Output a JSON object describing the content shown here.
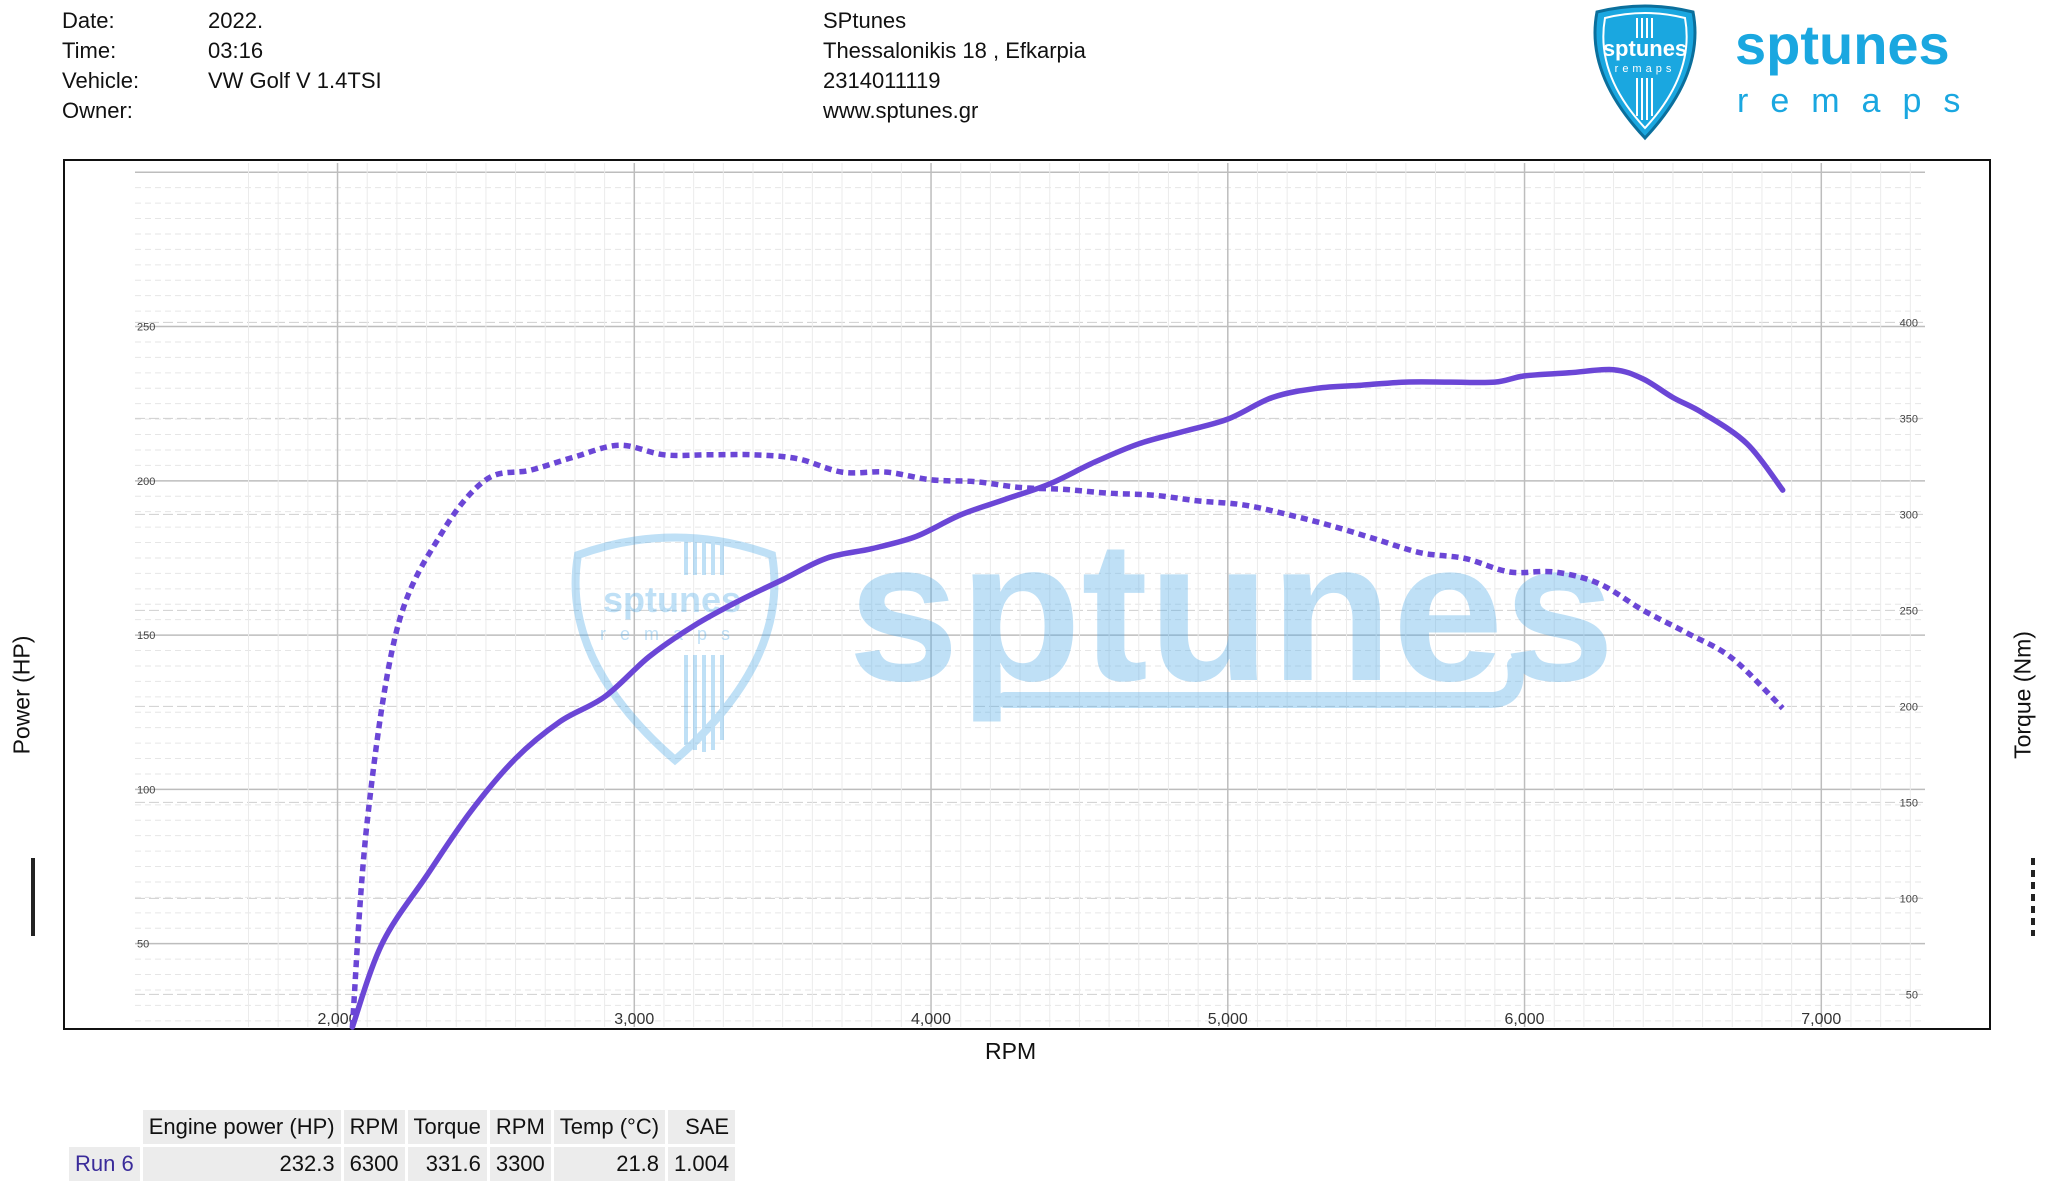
{
  "header": {
    "labels": [
      "Date:",
      "Time:",
      "Vehicle:",
      "Owner:"
    ],
    "values": [
      "2022.",
      "03:16",
      "VW Golf V 1.4TSI",
      ""
    ],
    "company": [
      "SPtunes",
      "Thessalonikis 18 , Efkarpia",
      "2314011119",
      "www.sptunes.gr"
    ]
  },
  "logo": {
    "badge_text": "sptunes",
    "badge_sub": "remaps",
    "word": "sptunes",
    "sub": "remaps",
    "color": "#1aa7e0"
  },
  "watermark": {
    "badge_text": "sptunes",
    "badge_sub": "remaps",
    "word": "sptunes"
  },
  "chart_data": {
    "type": "line",
    "xlabel": "RPM",
    "ylabel_left": "Power (HP)",
    "ylabel_right": "Torque (Nm)",
    "xlim": [
      1550,
      7400
    ],
    "ylim_left": [
      23,
      303
    ],
    "ylim_right": [
      33,
      483
    ],
    "x_ticks": [
      2000,
      3000,
      4000,
      5000,
      6000,
      7000
    ],
    "x_tick_labels": [
      "2,000",
      "3,000",
      "4,000",
      "5,000",
      "6,000",
      "7,000"
    ],
    "y_left_ticks": [
      50,
      100,
      150,
      200,
      250
    ],
    "y_right_ticks": [
      50,
      100,
      150,
      200,
      250,
      300,
      350,
      400
    ],
    "grid": true,
    "series": [
      {
        "name": "Engine power (HP)",
        "axis": "left",
        "style": "solid",
        "color": "#6b46d6",
        "x": [
          2050,
          2150,
          2300,
          2450,
          2600,
          2750,
          2900,
          3050,
          3200,
          3350,
          3500,
          3650,
          3800,
          3950,
          4100,
          4250,
          4400,
          4550,
          4700,
          4850,
          5000,
          5150,
          5300,
          5450,
          5600,
          5750,
          5900,
          6000,
          6150,
          6300,
          6400,
          6500,
          6600,
          6750,
          6870
        ],
        "y": [
          23,
          50,
          72,
          93,
          110,
          122,
          130,
          143,
          153,
          161,
          168,
          175,
          178,
          182,
          189,
          194,
          199,
          206,
          212,
          216,
          220,
          227,
          230,
          231,
          232,
          232,
          232,
          234,
          235,
          236,
          233,
          227,
          222,
          212,
          197
        ]
      },
      {
        "name": "Torque (Nm)",
        "axis": "right",
        "style": "dashed",
        "color": "#6b46d6",
        "x": [
          2050,
          2100,
          2200,
          2350,
          2500,
          2650,
          2800,
          2950,
          3100,
          3250,
          3400,
          3550,
          3700,
          3850,
          4000,
          4150,
          4300,
          4450,
          4600,
          4750,
          4900,
          5050,
          5200,
          5350,
          5500,
          5650,
          5800,
          5950,
          6100,
          6250,
          6400,
          6550,
          6700,
          6870
        ],
        "y": [
          33,
          140,
          240,
          290,
          318,
          323,
          330,
          336,
          331,
          331,
          331,
          329,
          322,
          322,
          318,
          317,
          314,
          313,
          311,
          310,
          307,
          305,
          300,
          294,
          287,
          280,
          277,
          270,
          270,
          264,
          250,
          238,
          225,
          199
        ]
      }
    ],
    "summary_table": {
      "headers": [
        "Engine power (HP)",
        "RPM",
        "Torque",
        "RPM",
        "Temp (°C)",
        "SAE"
      ],
      "rows": [
        {
          "run": "Run 6",
          "values": [
            "232.3",
            "6300",
            "331.6",
            "3300",
            "21.8",
            "1.004"
          ]
        }
      ]
    }
  }
}
